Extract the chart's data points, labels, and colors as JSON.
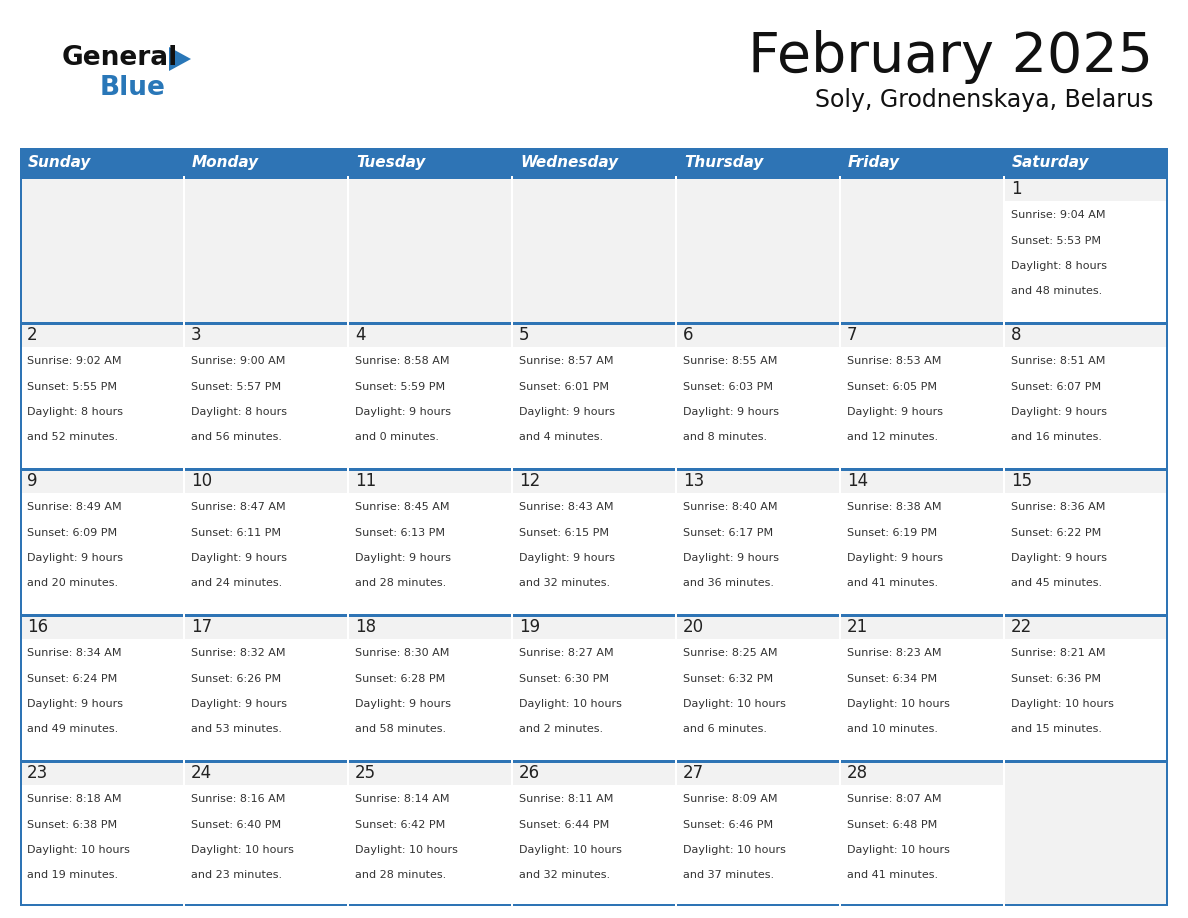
{
  "title": "February 2025",
  "subtitle": "Soly, Grodnenskaya, Belarus",
  "days_of_week": [
    "Sunday",
    "Monday",
    "Tuesday",
    "Wednesday",
    "Thursday",
    "Friday",
    "Saturday"
  ],
  "header_bg": "#2E74B5",
  "header_text": "#FFFFFF",
  "cell_bg_light": "#F2F2F2",
  "cell_bg_white": "#FFFFFF",
  "cell_border_color": "#2E74B5",
  "day_num_color": "#222222",
  "day_info_color": "#333333",
  "title_color": "#111111",
  "subtitle_color": "#111111",
  "logo_general_color": "#111111",
  "logo_blue_color": "#2977B8",
  "calendar": [
    [
      {
        "day": null,
        "info": ""
      },
      {
        "day": null,
        "info": ""
      },
      {
        "day": null,
        "info": ""
      },
      {
        "day": null,
        "info": ""
      },
      {
        "day": null,
        "info": ""
      },
      {
        "day": null,
        "info": ""
      },
      {
        "day": 1,
        "info": "Sunrise: 9:04 AM\nSunset: 5:53 PM\nDaylight: 8 hours\nand 48 minutes."
      }
    ],
    [
      {
        "day": 2,
        "info": "Sunrise: 9:02 AM\nSunset: 5:55 PM\nDaylight: 8 hours\nand 52 minutes."
      },
      {
        "day": 3,
        "info": "Sunrise: 9:00 AM\nSunset: 5:57 PM\nDaylight: 8 hours\nand 56 minutes."
      },
      {
        "day": 4,
        "info": "Sunrise: 8:58 AM\nSunset: 5:59 PM\nDaylight: 9 hours\nand 0 minutes."
      },
      {
        "day": 5,
        "info": "Sunrise: 8:57 AM\nSunset: 6:01 PM\nDaylight: 9 hours\nand 4 minutes."
      },
      {
        "day": 6,
        "info": "Sunrise: 8:55 AM\nSunset: 6:03 PM\nDaylight: 9 hours\nand 8 minutes."
      },
      {
        "day": 7,
        "info": "Sunrise: 8:53 AM\nSunset: 6:05 PM\nDaylight: 9 hours\nand 12 minutes."
      },
      {
        "day": 8,
        "info": "Sunrise: 8:51 AM\nSunset: 6:07 PM\nDaylight: 9 hours\nand 16 minutes."
      }
    ],
    [
      {
        "day": 9,
        "info": "Sunrise: 8:49 AM\nSunset: 6:09 PM\nDaylight: 9 hours\nand 20 minutes."
      },
      {
        "day": 10,
        "info": "Sunrise: 8:47 AM\nSunset: 6:11 PM\nDaylight: 9 hours\nand 24 minutes."
      },
      {
        "day": 11,
        "info": "Sunrise: 8:45 AM\nSunset: 6:13 PM\nDaylight: 9 hours\nand 28 minutes."
      },
      {
        "day": 12,
        "info": "Sunrise: 8:43 AM\nSunset: 6:15 PM\nDaylight: 9 hours\nand 32 minutes."
      },
      {
        "day": 13,
        "info": "Sunrise: 8:40 AM\nSunset: 6:17 PM\nDaylight: 9 hours\nand 36 minutes."
      },
      {
        "day": 14,
        "info": "Sunrise: 8:38 AM\nSunset: 6:19 PM\nDaylight: 9 hours\nand 41 minutes."
      },
      {
        "day": 15,
        "info": "Sunrise: 8:36 AM\nSunset: 6:22 PM\nDaylight: 9 hours\nand 45 minutes."
      }
    ],
    [
      {
        "day": 16,
        "info": "Sunrise: 8:34 AM\nSunset: 6:24 PM\nDaylight: 9 hours\nand 49 minutes."
      },
      {
        "day": 17,
        "info": "Sunrise: 8:32 AM\nSunset: 6:26 PM\nDaylight: 9 hours\nand 53 minutes."
      },
      {
        "day": 18,
        "info": "Sunrise: 8:30 AM\nSunset: 6:28 PM\nDaylight: 9 hours\nand 58 minutes."
      },
      {
        "day": 19,
        "info": "Sunrise: 8:27 AM\nSunset: 6:30 PM\nDaylight: 10 hours\nand 2 minutes."
      },
      {
        "day": 20,
        "info": "Sunrise: 8:25 AM\nSunset: 6:32 PM\nDaylight: 10 hours\nand 6 minutes."
      },
      {
        "day": 21,
        "info": "Sunrise: 8:23 AM\nSunset: 6:34 PM\nDaylight: 10 hours\nand 10 minutes."
      },
      {
        "day": 22,
        "info": "Sunrise: 8:21 AM\nSunset: 6:36 PM\nDaylight: 10 hours\nand 15 minutes."
      }
    ],
    [
      {
        "day": 23,
        "info": "Sunrise: 8:18 AM\nSunset: 6:38 PM\nDaylight: 10 hours\nand 19 minutes."
      },
      {
        "day": 24,
        "info": "Sunrise: 8:16 AM\nSunset: 6:40 PM\nDaylight: 10 hours\nand 23 minutes."
      },
      {
        "day": 25,
        "info": "Sunrise: 8:14 AM\nSunset: 6:42 PM\nDaylight: 10 hours\nand 28 minutes."
      },
      {
        "day": 26,
        "info": "Sunrise: 8:11 AM\nSunset: 6:44 PM\nDaylight: 10 hours\nand 32 minutes."
      },
      {
        "day": 27,
        "info": "Sunrise: 8:09 AM\nSunset: 6:46 PM\nDaylight: 10 hours\nand 37 minutes."
      },
      {
        "day": 28,
        "info": "Sunrise: 8:07 AM\nSunset: 6:48 PM\nDaylight: 10 hours\nand 41 minutes."
      },
      {
        "day": null,
        "info": ""
      }
    ]
  ]
}
